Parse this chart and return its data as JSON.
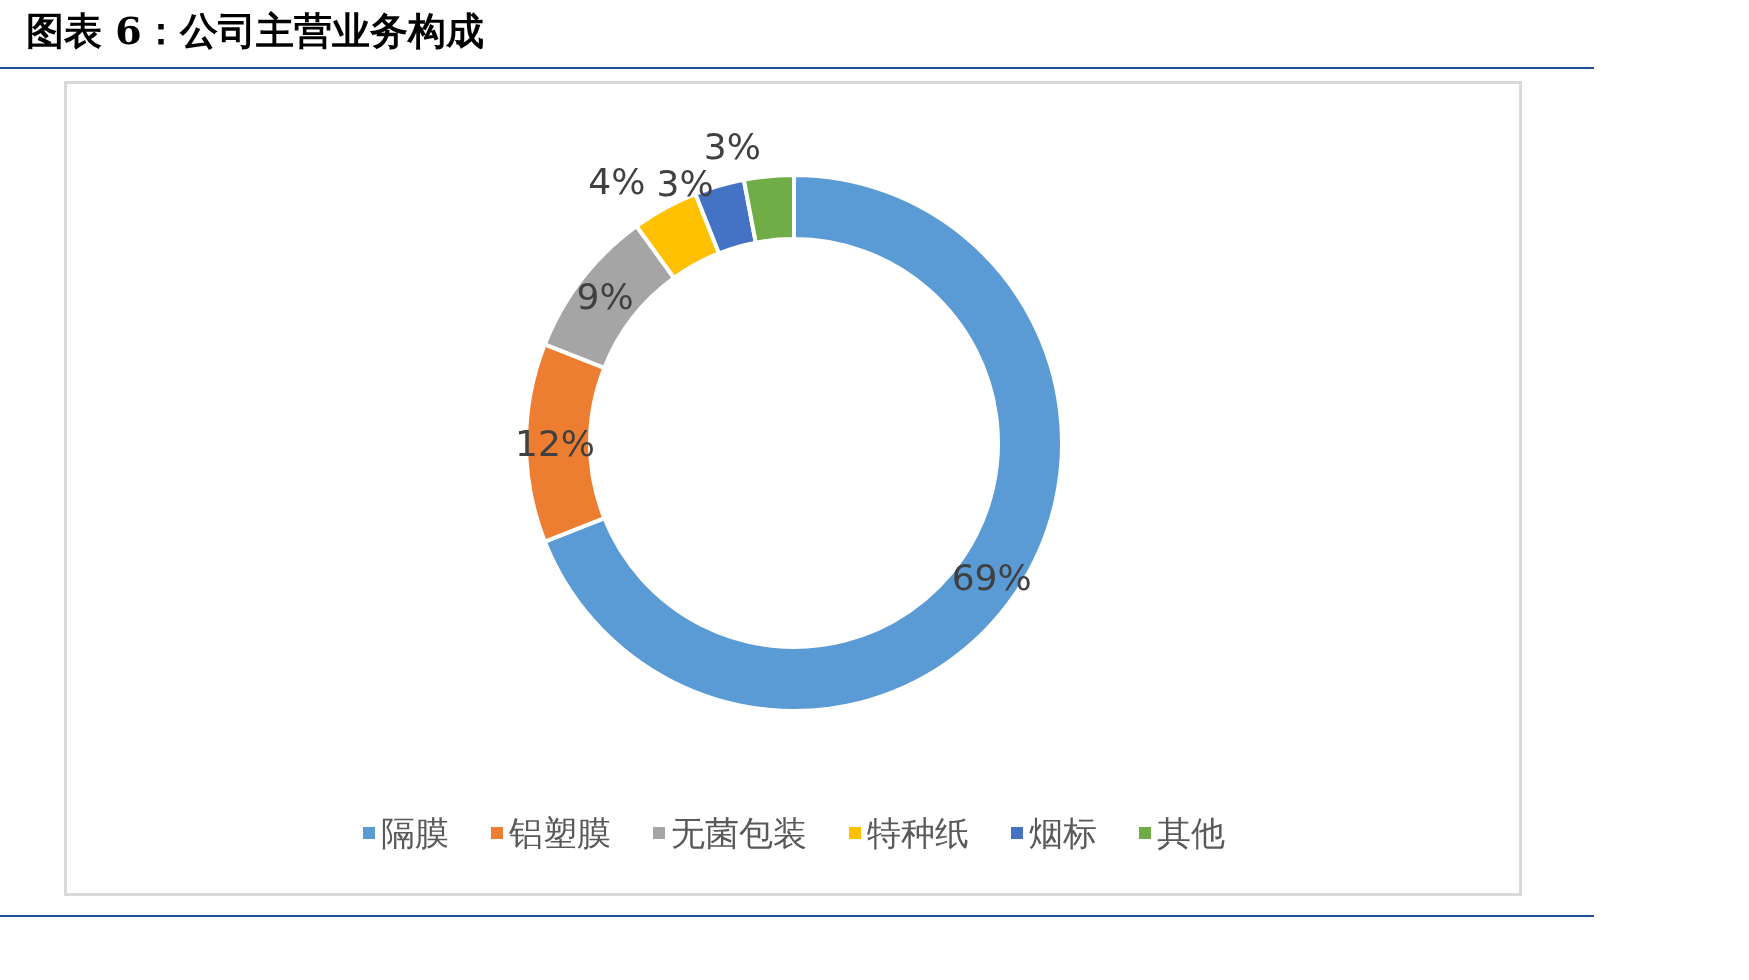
{
  "chart_data": {
    "type": "donut",
    "title": "图表 6：公司主营业务构成",
    "categories": [
      "隔膜",
      "铝塑膜",
      "无菌包装",
      "特种纸",
      "烟标",
      "其他"
    ],
    "values": [
      69,
      12,
      9,
      4,
      3,
      3
    ],
    "colors": [
      "#5b9bd5",
      "#ed7d31",
      "#a5a5a5",
      "#ffc000",
      "#4472c4",
      "#70ad47"
    ],
    "value_labels": [
      "69%",
      "12%",
      "9%",
      "4%",
      "3%",
      "3%"
    ],
    "legend": "bottom"
  }
}
